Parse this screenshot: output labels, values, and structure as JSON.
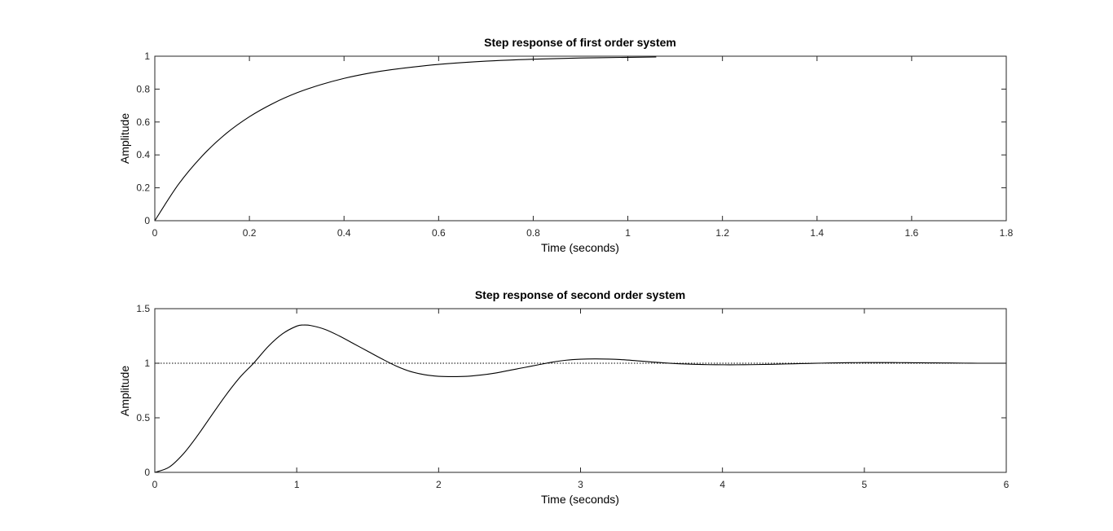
{
  "chart_data": [
    {
      "type": "line",
      "title": "Step response of first order system",
      "xlabel": "Time (seconds)",
      "ylabel": "Amplitude",
      "xlim": [
        0,
        1.8
      ],
      "ylim": [
        0,
        1
      ],
      "xticks": [
        "0",
        "0.2",
        "0.4",
        "0.6",
        "0.8",
        "1",
        "1.2",
        "1.4",
        "1.6",
        "1.8"
      ],
      "yticks": [
        "0",
        "0.2",
        "0.4",
        "0.6",
        "0.8",
        "1"
      ],
      "grid": false,
      "reference_value": 1,
      "series": [
        {
          "x": [
            0,
            0.05,
            0.1,
            0.15,
            0.2,
            0.25,
            0.3,
            0.35,
            0.4,
            0.45,
            0.5,
            0.6,
            0.7,
            0.8,
            0.9,
            1.0,
            1.06
          ],
          "values": [
            0,
            0.221,
            0.393,
            0.528,
            0.632,
            0.713,
            0.777,
            0.826,
            0.865,
            0.895,
            0.918,
            0.95,
            0.97,
            0.982,
            0.989,
            0.993,
            0.995
          ]
        }
      ],
      "line_color": "#000000"
    },
    {
      "type": "line",
      "title": "Step response of second order system",
      "xlabel": "Time (seconds)",
      "ylabel": "Amplitude",
      "xlim": [
        0,
        6
      ],
      "ylim": [
        0,
        1.5
      ],
      "xticks": [
        "0",
        "1",
        "2",
        "3",
        "4",
        "5",
        "6"
      ],
      "yticks": [
        "0",
        "0.5",
        "1",
        "1.5"
      ],
      "grid": false,
      "reference_value": 1,
      "series": [
        {
          "x": [
            0,
            0.1,
            0.2,
            0.3,
            0.4,
            0.5,
            0.6,
            0.7,
            0.8,
            0.9,
            1.0,
            1.05,
            1.1,
            1.2,
            1.3,
            1.4,
            1.5,
            1.6,
            1.7,
            1.8,
            1.9,
            2.0,
            2.1,
            2.2,
            2.3,
            2.4,
            2.5,
            2.6,
            2.7,
            2.8,
            2.9,
            3.0,
            3.1,
            3.2,
            3.3,
            3.4,
            3.5,
            3.6,
            3.7,
            3.8,
            3.9,
            4.0,
            4.1,
            4.2,
            4.3,
            4.4,
            4.5,
            4.6,
            4.7,
            4.8,
            4.9,
            5.0,
            5.1,
            5.2,
            5.3,
            5.4,
            5.5,
            5.6,
            5.7,
            5.8,
            5.9,
            6.0
          ],
          "values": [
            0,
            0.047,
            0.168,
            0.335,
            0.522,
            0.706,
            0.871,
            1.006,
            1.155,
            1.27,
            1.34,
            1.35,
            1.345,
            1.31,
            1.25,
            1.18,
            1.11,
            1.04,
            0.975,
            0.925,
            0.895,
            0.88,
            0.877,
            0.88,
            0.892,
            0.91,
            0.935,
            0.96,
            0.985,
            1.01,
            1.028,
            1.037,
            1.04,
            1.038,
            1.032,
            1.022,
            1.012,
            1.002,
            0.995,
            0.99,
            0.987,
            0.986,
            0.986,
            0.987,
            0.989,
            0.992,
            0.995,
            0.998,
            1.001,
            1.003,
            1.005,
            1.006,
            1.006,
            1.006,
            1.005,
            1.004,
            1.003,
            1.002,
            1.001,
            1.0,
            1.0,
            1.0
          ]
        }
      ],
      "line_color": "#000000"
    }
  ]
}
